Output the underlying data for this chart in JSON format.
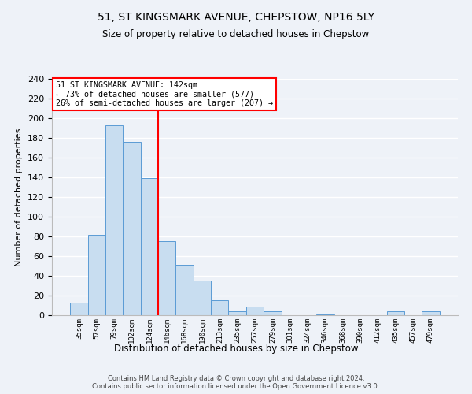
{
  "title": "51, ST KINGSMARK AVENUE, CHEPSTOW, NP16 5LY",
  "subtitle": "Size of property relative to detached houses in Chepstow",
  "xlabel": "Distribution of detached houses by size in Chepstow",
  "ylabel": "Number of detached properties",
  "bar_labels": [
    "35sqm",
    "57sqm",
    "79sqm",
    "102sqm",
    "124sqm",
    "146sqm",
    "168sqm",
    "190sqm",
    "213sqm",
    "235sqm",
    "257sqm",
    "279sqm",
    "301sqm",
    "324sqm",
    "346sqm",
    "368sqm",
    "390sqm",
    "412sqm",
    "435sqm",
    "457sqm",
    "479sqm"
  ],
  "bar_values": [
    13,
    82,
    193,
    176,
    139,
    75,
    51,
    35,
    15,
    4,
    9,
    4,
    0,
    0,
    1,
    0,
    0,
    0,
    4,
    0,
    4
  ],
  "bar_color": "#c8ddf0",
  "bar_edgecolor": "#5b9bd5",
  "property_line_x": 4.5,
  "property_label": "51 ST KINGSMARK AVENUE: 142sqm",
  "annotation_line1": "← 73% of detached houses are smaller (577)",
  "annotation_line2": "26% of semi-detached houses are larger (207) →",
  "annotation_box_edgecolor": "red",
  "vline_color": "red",
  "ylim": [
    0,
    240
  ],
  "yticks": [
    0,
    20,
    40,
    60,
    80,
    100,
    120,
    140,
    160,
    180,
    200,
    220,
    240
  ],
  "footer_line1": "Contains HM Land Registry data © Crown copyright and database right 2024.",
  "footer_line2": "Contains public sector information licensed under the Open Government Licence v3.0.",
  "bg_color": "#eef2f8",
  "plot_bg_color": "#eef2f8",
  "grid_color": "white",
  "title_fontsize": 10,
  "subtitle_fontsize": 9
}
